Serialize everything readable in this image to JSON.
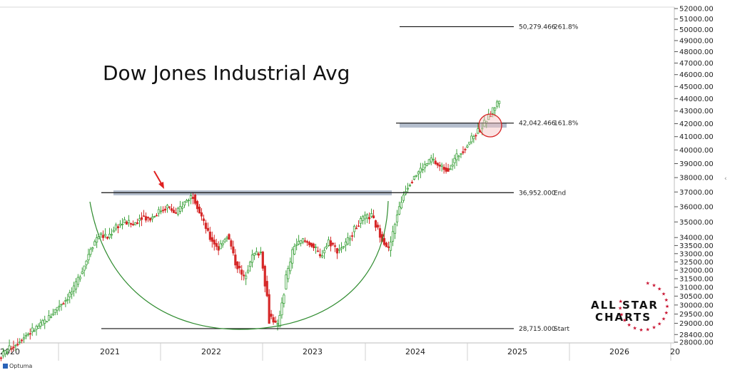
{
  "chart_data": {
    "type": "candlestick",
    "title": "Dow Jones Industrial Avg",
    "y_axis": {
      "scale": "log",
      "position": "right",
      "range": [
        28000,
        52000
      ],
      "ticks": [
        "52000.00",
        "51000.00",
        "50000.00",
        "49000.00",
        "48000.00",
        "47000.00",
        "46000.00",
        "45000.00",
        "44000.00",
        "43000.00",
        "42000.00",
        "41000.00",
        "40000.00",
        "39000.00",
        "38000.00",
        "37000.00",
        "36000.00",
        "35000.00",
        "34000.00",
        "33500.00",
        "33000.00",
        "32500.00",
        "32000.00",
        "31500.00",
        "31000.00",
        "30500.00",
        "30000.00",
        "29500.00",
        "29000.00",
        "28400.00",
        "28000.00"
      ]
    },
    "x_axis": {
      "range": [
        "2020-01",
        "2026-12"
      ],
      "year_labels": [
        "2020",
        "2021",
        "2022",
        "2023",
        "2024",
        "2025",
        "2026",
        "20"
      ]
    },
    "grid": false,
    "levels": [
      {
        "value": 50279.466,
        "label": "50,279.466",
        "tag": "261.8%"
      },
      {
        "value": 42042.466,
        "label": "42,042.466",
        "tag": "161.8%"
      },
      {
        "value": 36952.0,
        "label": "36,952.000",
        "tag": "End"
      },
      {
        "value": 28715.0,
        "label": "28,715.000",
        "tag": "Start"
      }
    ],
    "resistance_zones": [
      {
        "from": "2021-02",
        "to": "2023-10",
        "value": 36952
      },
      {
        "from": "2023-11",
        "to": "2024-12",
        "value": 42042
      }
    ],
    "annotations": [
      "red arrow at 2021 high",
      "cup-shaped arc 2021-2023",
      "red circle at current price"
    ],
    "price_series": {
      "dates": [
        "2020-01",
        "2020-02",
        "2020-03",
        "2020-04",
        "2020-05",
        "2020-06",
        "2020-07",
        "2020-08",
        "2020-09",
        "2020-10",
        "2020-11",
        "2020-12",
        "2021-01",
        "2021-02",
        "2021-03",
        "2021-04",
        "2021-05",
        "2021-06",
        "2021-07",
        "2021-08",
        "2021-09",
        "2021-10",
        "2021-11",
        "2021-12",
        "2022-01",
        "2022-02",
        "2022-03",
        "2022-04",
        "2022-05",
        "2022-06",
        "2022-07",
        "2022-08",
        "2022-09",
        "2022-10",
        "2022-11",
        "2022-12",
        "2023-01",
        "2023-02",
        "2023-03",
        "2023-04",
        "2023-05",
        "2023-06",
        "2023-07",
        "2023-08",
        "2023-09",
        "2023-10",
        "2023-11",
        "2023-12",
        "2024-01",
        "2024-02",
        "2024-03",
        "2024-04",
        "2024-05",
        "2024-06",
        "2024-07",
        "2024-08",
        "2024-09",
        "2024-10",
        "2024-11",
        "2024-12"
      ],
      "values": [
        27200,
        27600,
        27900,
        28300,
        28600,
        28900,
        29300,
        29900,
        30300,
        30900,
        32000,
        33300,
        34200,
        34000,
        34700,
        35000,
        34800,
        35400,
        35200,
        35700,
        36000,
        35500,
        36300,
        36800,
        35200,
        34000,
        33300,
        34200,
        32500,
        31500,
        32900,
        33100,
        29500,
        28800,
        31500,
        33500,
        33800,
        33600,
        32800,
        33800,
        33200,
        33600,
        34600,
        35200,
        35400,
        34200,
        33200,
        35500,
        37200,
        38100,
        38700,
        39300,
        38800,
        38600,
        39500,
        40200,
        41100,
        41800,
        42800,
        43900
      ]
    }
  }
}
